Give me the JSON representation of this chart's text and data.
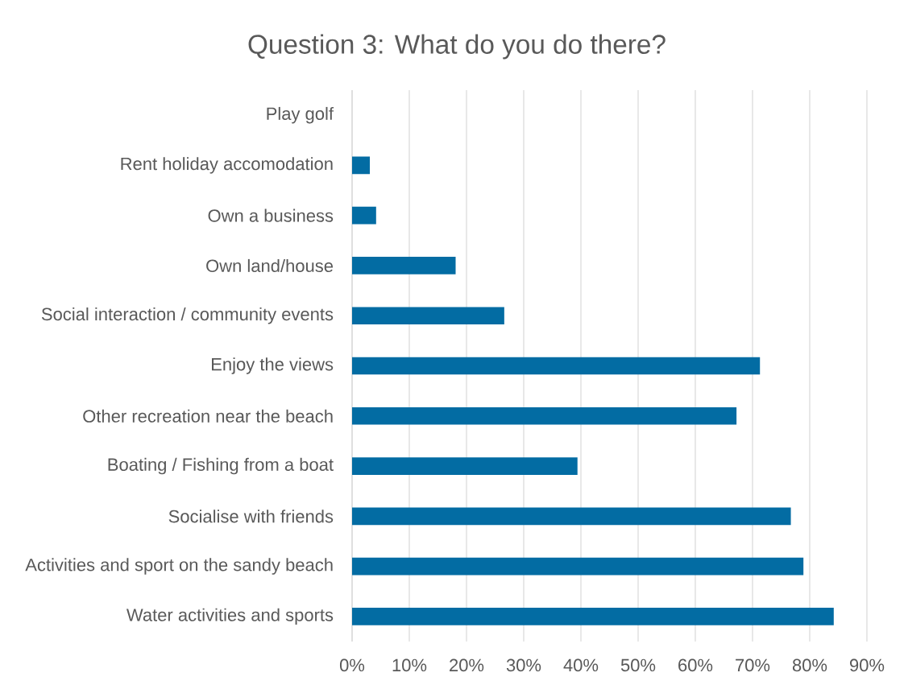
{
  "chart_data": {
    "type": "bar",
    "orientation": "horizontal",
    "title": "Question 3: What do you do there?",
    "categories": [
      "Play golf",
      "Rent holiday accomodation",
      "Own a business",
      "Own land/house",
      "Social interaction / community events",
      "Enjoy the views",
      "Other recreation near the beach",
      "Boating / Fishing from a boat",
      "Socialise with friends",
      "Activities and sport on the sandy beach",
      "Water activities and sports"
    ],
    "values": [
      0,
      3.1,
      4.2,
      18.1,
      26.6,
      71.3,
      67.2,
      39.4,
      76.7,
      78.9,
      84.2
    ],
    "color": "#036ca3",
    "xlim": [
      0,
      90
    ],
    "xticks": [
      {
        "value": 0,
        "label": "0%"
      },
      {
        "value": 10,
        "label": "10%"
      },
      {
        "value": 20,
        "label": "20%"
      },
      {
        "value": 30,
        "label": "30%"
      },
      {
        "value": 40,
        "label": "40%"
      },
      {
        "value": 50,
        "label": "50%"
      },
      {
        "value": 60,
        "label": "60%"
      },
      {
        "value": 70,
        "label": "70%"
      },
      {
        "value": 80,
        "label": "80%"
      },
      {
        "value": 90,
        "label": "90%"
      }
    ],
    "grid": "x"
  }
}
